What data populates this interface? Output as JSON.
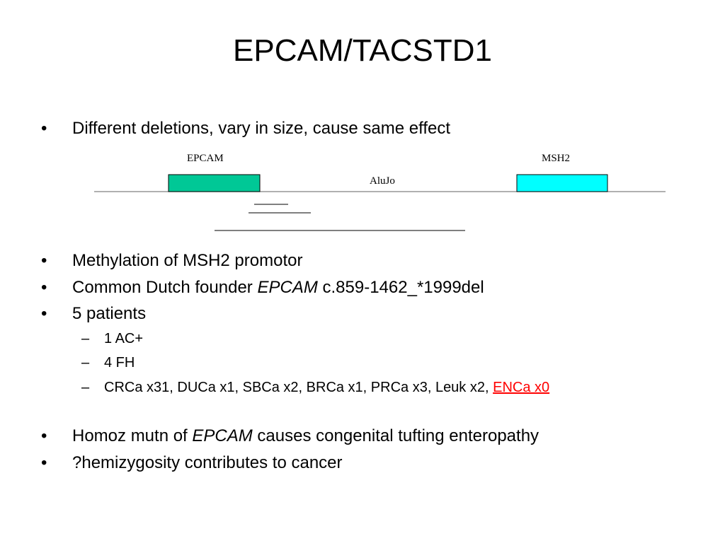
{
  "title": "EPCAM/TACSTD1",
  "colors": {
    "epcam_box": "#00c896",
    "msh2_box": "#00ffff",
    "link_red": "#ff0000"
  },
  "bullets": [
    {
      "mark": "•",
      "text": "Different deletions, vary in size, cause same effect"
    },
    {
      "mark": "•",
      "text": "Methylation of MSH2 promotor"
    },
    {
      "mark": "•",
      "pre": "Common Dutch founder ",
      "em": "EPCAM",
      "post": " c.859-1462_*1999del"
    },
    {
      "mark": "•",
      "text": "5 patients"
    },
    {
      "mark": "•",
      "pre": "Homoz mutn of ",
      "em": "EPCAM",
      "post": " causes congenital tufting enteropathy"
    },
    {
      "mark": "•",
      "text": "?hemizygosity contributes to cancer"
    }
  ],
  "subbullets": [
    {
      "mark": "–",
      "text": "1 AC+"
    },
    {
      "mark": "–",
      "text": "4 FH"
    },
    {
      "mark": "–",
      "text": "CRCa x31, DUCa x1, SBCa x2, BRCa x1, PRCa x3, Leuk x2, ",
      "highlight": "ENCa x0"
    }
  ],
  "diagram": {
    "gene1": "EPCAM",
    "gene2": "MSH2",
    "element": "AluJo"
  }
}
